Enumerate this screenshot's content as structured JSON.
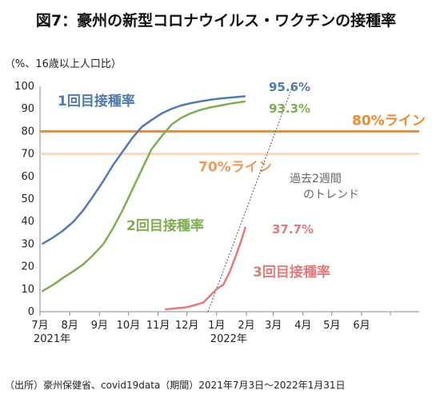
{
  "chart_data": {
    "type": "line",
    "title": "図7：豪州の新型コロナウイルス・ワクチンの接種率",
    "ylabel": "（%、16歳以上人口比）",
    "ylim": [
      0,
      100
    ],
    "yticks": [
      "0",
      "10",
      "20",
      "30",
      "40",
      "50",
      "60",
      "70",
      "80",
      "90",
      "100"
    ],
    "xlim": [
      "2021-07-01",
      "2022-07-31"
    ],
    "x_month_labels": [
      "7月",
      "8月",
      "9月",
      "10月",
      "11月",
      "12月",
      "1月",
      "2月",
      "3月",
      "4月",
      "5月",
      "6月"
    ],
    "x_year_labels": [
      "2021年",
      "2022年"
    ],
    "grid": false,
    "series": [
      {
        "name": "1回目接種率",
        "color": "#4f7bb0",
        "end_label": "95.6%",
        "points": [
          [
            "2021-07-03",
            30
          ],
          [
            "2021-07-15",
            33
          ],
          [
            "2021-07-25",
            36
          ],
          [
            "2021-08-05",
            40
          ],
          [
            "2021-08-15",
            45
          ],
          [
            "2021-08-25",
            51
          ],
          [
            "2021-09-05",
            58
          ],
          [
            "2021-09-15",
            65
          ],
          [
            "2021-09-25",
            71
          ],
          [
            "2021-10-05",
            77
          ],
          [
            "2021-10-15",
            82
          ],
          [
            "2021-10-25",
            85
          ],
          [
            "2021-11-05",
            88
          ],
          [
            "2021-11-15",
            90
          ],
          [
            "2021-11-25",
            91.5
          ],
          [
            "2021-12-05",
            92.5
          ],
          [
            "2021-12-15",
            93.3
          ],
          [
            "2021-12-25",
            94
          ],
          [
            "2022-01-05",
            94.6
          ],
          [
            "2022-01-15",
            95
          ],
          [
            "2022-01-31",
            95.6
          ]
        ]
      },
      {
        "name": "2回目接種率",
        "color": "#7fae4e",
        "end_label": "93.3%",
        "points": [
          [
            "2021-07-03",
            9
          ],
          [
            "2021-07-15",
            12
          ],
          [
            "2021-07-25",
            15
          ],
          [
            "2021-08-05",
            18
          ],
          [
            "2021-08-15",
            21
          ],
          [
            "2021-08-25",
            25
          ],
          [
            "2021-09-05",
            30
          ],
          [
            "2021-09-15",
            37
          ],
          [
            "2021-09-25",
            45
          ],
          [
            "2021-10-05",
            54
          ],
          [
            "2021-10-15",
            63
          ],
          [
            "2021-10-25",
            72
          ],
          [
            "2021-11-05",
            78
          ],
          [
            "2021-11-15",
            83
          ],
          [
            "2021-11-25",
            86
          ],
          [
            "2021-12-05",
            88
          ],
          [
            "2021-12-15",
            89.5
          ],
          [
            "2021-12-25",
            90.6
          ],
          [
            "2022-01-05",
            91.5
          ],
          [
            "2022-01-15",
            92.3
          ],
          [
            "2022-01-31",
            93.3
          ]
        ]
      },
      {
        "name": "3回目接種率",
        "color": "#e37a7a",
        "end_label": "37.7%",
        "points": [
          [
            "2021-11-08",
            1
          ],
          [
            "2021-11-20",
            1.5
          ],
          [
            "2021-12-01",
            2
          ],
          [
            "2021-12-10",
            3
          ],
          [
            "2021-12-18",
            4
          ],
          [
            "2021-12-25",
            7
          ],
          [
            "2022-01-01",
            10
          ],
          [
            "2022-01-08",
            12
          ],
          [
            "2022-01-15",
            18
          ],
          [
            "2022-01-22",
            26
          ],
          [
            "2022-01-27",
            32
          ],
          [
            "2022-01-31",
            37.7
          ]
        ]
      }
    ],
    "reference_lines": [
      {
        "name": "80%ライン",
        "y": 80,
        "color": "#ed8a2f"
      },
      {
        "name": "70%ライン",
        "y": 70,
        "color": "#fbd7b5"
      }
    ],
    "trend_line": {
      "label_lines": [
        "過去2週間",
        "のトレンド"
      ],
      "color": "#555555",
      "points": [
        [
          "2021-12-23",
          0
        ],
        [
          "2022-03-21",
          100
        ]
      ]
    },
    "source": "（出所）豪州保健省、covid19data（期間）2021年7月3日～2022年1月31日"
  }
}
